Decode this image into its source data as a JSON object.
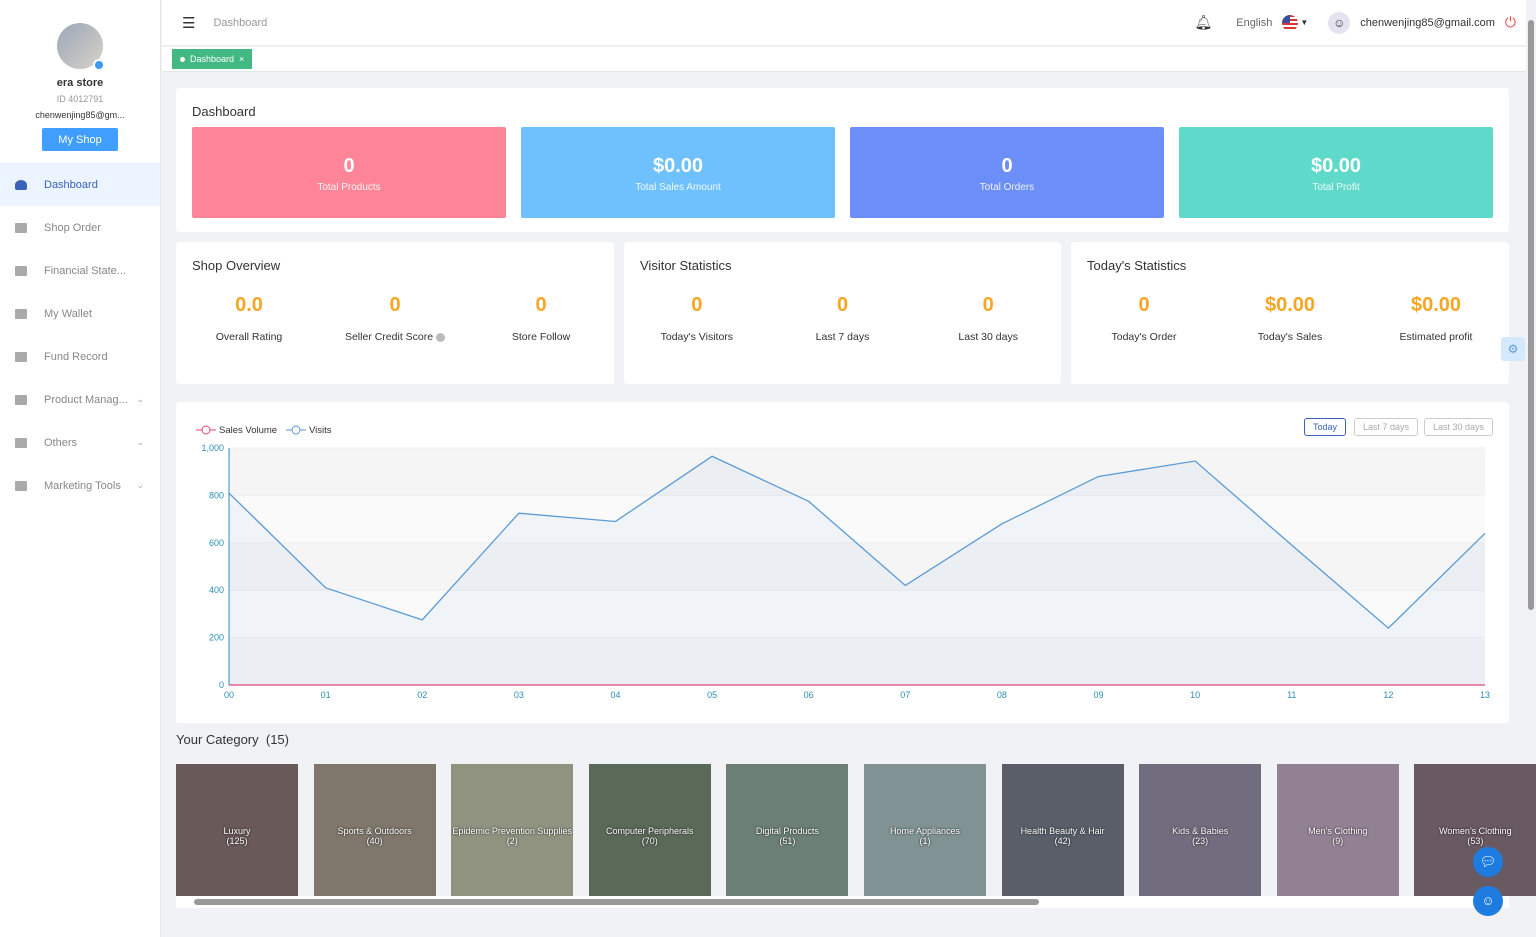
{
  "sidebar": {
    "store_name": "era store",
    "store_id": "ID 4012791",
    "email": "chenwenjing85@gm...",
    "my_shop": "My Shop",
    "items": [
      {
        "label": "Dashboard",
        "active": true
      },
      {
        "label": "Shop Order"
      },
      {
        "label": "Financial State..."
      },
      {
        "label": "My Wallet"
      },
      {
        "label": "Fund Record"
      },
      {
        "label": "Product Manag...",
        "chevron": true
      },
      {
        "label": "Others",
        "chevron": true
      },
      {
        "label": "Marketing Tools",
        "chevron": true
      }
    ]
  },
  "header": {
    "breadcrumb": "Dashboard",
    "language": "English",
    "user_email": "chenwenjing85@gmail.com"
  },
  "tabs": [
    {
      "label": "Dashboard"
    }
  ],
  "dashboard": {
    "title": "Dashboard",
    "stats": [
      {
        "value": "0",
        "label": "Total Products",
        "color": "#fd8597"
      },
      {
        "value": "$0.00",
        "label": "Total Sales Amount",
        "color": "#6ec1fd"
      },
      {
        "value": "0",
        "label": "Total Orders",
        "color": "#6b8ef8"
      },
      {
        "value": "$0.00",
        "label": "Total Profit",
        "color": "#5fd9c9"
      }
    ]
  },
  "shop_overview": {
    "title": "Shop Overview",
    "items": [
      {
        "value": "0.0",
        "label": "Overall Rating"
      },
      {
        "value": "0",
        "label": "Seller Credit Score"
      },
      {
        "value": "0",
        "label": "Store Follow"
      }
    ]
  },
  "visitor_statistics": {
    "title": "Visitor Statistics",
    "items": [
      {
        "value": "0",
        "label": "Today's Visitors"
      },
      {
        "value": "0",
        "label": "Last 7 days"
      },
      {
        "value": "0",
        "label": "Last 30 days"
      }
    ]
  },
  "todays_statistics": {
    "title": "Today's Statistics",
    "items": [
      {
        "value": "0",
        "label": "Today's Order"
      },
      {
        "value": "$0.00",
        "label": "Today's Sales"
      },
      {
        "value": "$0.00",
        "label": "Estimated profit"
      }
    ]
  },
  "range_buttons": [
    "Today",
    "Last 7 days",
    "Last 30 days"
  ],
  "chart_data": {
    "type": "line",
    "x": [
      "00",
      "01",
      "02",
      "03",
      "04",
      "05",
      "06",
      "07",
      "08",
      "09",
      "10",
      "11",
      "12",
      "13"
    ],
    "ylim": [
      0,
      1000
    ],
    "yticks": [
      "0",
      "200",
      "400",
      "600",
      "800",
      "1,000"
    ],
    "legend": "top-left",
    "grid": true,
    "series": [
      {
        "name": "Sales Volume",
        "color": "#e0457b",
        "values": [
          0,
          0,
          0,
          0,
          0,
          0,
          0,
          0,
          0,
          0,
          0,
          0,
          0,
          0
        ]
      },
      {
        "name": "Visits",
        "color": "#5b9bd5",
        "values": [
          810,
          410,
          275,
          725,
          690,
          965,
          775,
          420,
          680,
          880,
          945,
          590,
          240,
          640
        ]
      }
    ]
  },
  "categories": {
    "title": "Your Category",
    "count": "(15)",
    "items": [
      {
        "name": "Luxury",
        "count": "(125)"
      },
      {
        "name": "Sports & Outdoors",
        "count": "(40)"
      },
      {
        "name": "Epidemic Prevention Supplies",
        "count": "(2)"
      },
      {
        "name": "Computer Peripherals",
        "count": "(70)"
      },
      {
        "name": "Digital Products",
        "count": "(51)"
      },
      {
        "name": "Home Appliances",
        "count": "(1)"
      },
      {
        "name": "Health Beauty & Hair",
        "count": "(42)"
      },
      {
        "name": "Kids & Babies",
        "count": "(23)"
      },
      {
        "name": "Men's Clothing",
        "count": "(9)"
      },
      {
        "name": "Women's Clothing",
        "count": "(53)"
      }
    ]
  }
}
